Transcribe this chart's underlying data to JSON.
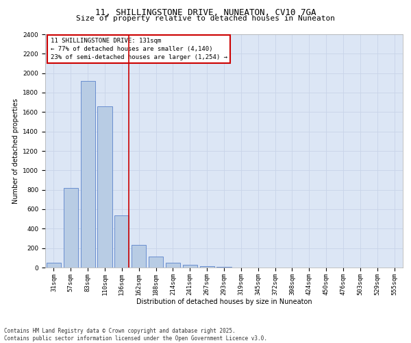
{
  "title_line1": "11, SHILLINGSTONE DRIVE, NUNEATON, CV10 7GA",
  "title_line2": "Size of property relative to detached houses in Nuneaton",
  "xlabel": "Distribution of detached houses by size in Nuneaton",
  "ylabel": "Number of detached properties",
  "categories": [
    "31sqm",
    "57sqm",
    "83sqm",
    "110sqm",
    "136sqm",
    "162sqm",
    "188sqm",
    "214sqm",
    "241sqm",
    "267sqm",
    "293sqm",
    "319sqm",
    "345sqm",
    "372sqm",
    "398sqm",
    "424sqm",
    "450sqm",
    "476sqm",
    "503sqm",
    "529sqm",
    "555sqm"
  ],
  "values": [
    50,
    820,
    1920,
    1660,
    540,
    235,
    110,
    50,
    30,
    15,
    5,
    0,
    0,
    0,
    0,
    0,
    0,
    0,
    0,
    0,
    0
  ],
  "bar_color": "#b8cce4",
  "bar_edgecolor": "#4472c4",
  "vline_color": "#cc0000",
  "annotation_text": "11 SHILLINGSTONE DRIVE: 131sqm\n← 77% of detached houses are smaller (4,140)\n23% of semi-detached houses are larger (1,254) →",
  "annotation_box_color": "#cc0000",
  "ylim": [
    0,
    2400
  ],
  "yticks": [
    0,
    200,
    400,
    600,
    800,
    1000,
    1200,
    1400,
    1600,
    1800,
    2000,
    2200,
    2400
  ],
  "grid_color": "#c8d4e8",
  "bg_color": "#dce6f5",
  "footer_line1": "Contains HM Land Registry data © Crown copyright and database right 2025.",
  "footer_line2": "Contains public sector information licensed under the Open Government Licence v3.0.",
  "title_fontsize": 9,
  "subtitle_fontsize": 8,
  "axis_label_fontsize": 7,
  "tick_fontsize": 6.5,
  "annotation_fontsize": 6.5,
  "footer_fontsize": 5.5
}
